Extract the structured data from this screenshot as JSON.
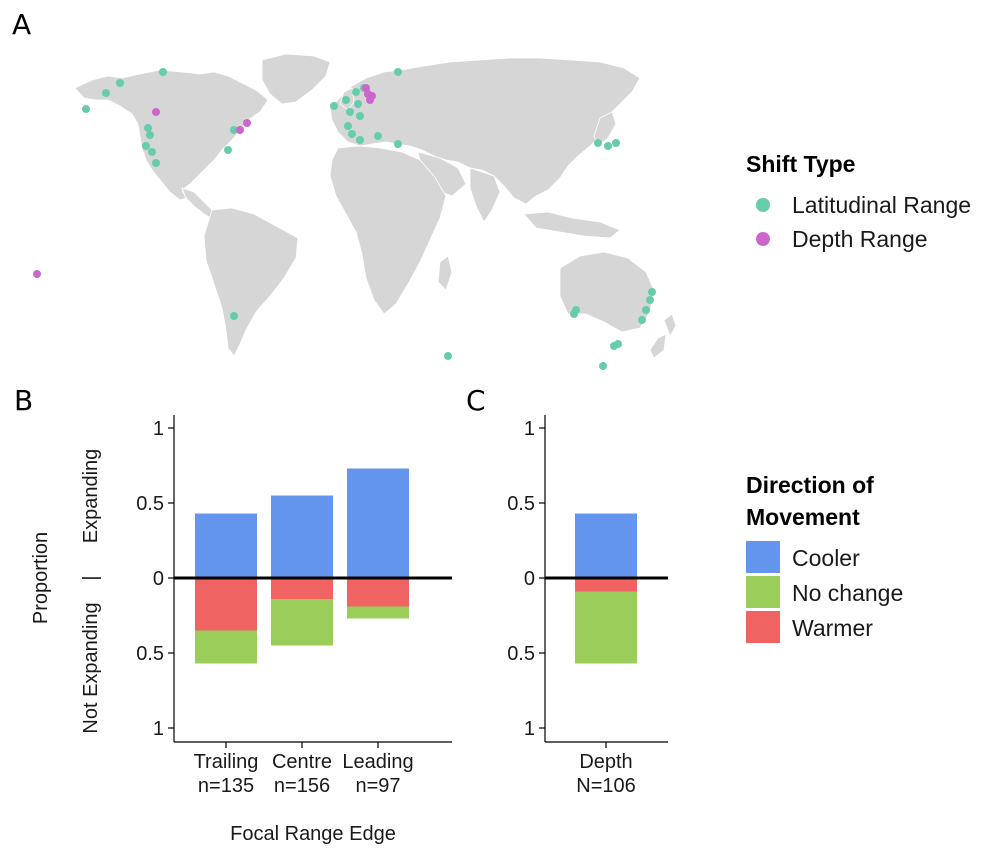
{
  "panel_labels": {
    "a": "A",
    "b": "B",
    "c": "C"
  },
  "map": {
    "legend_title": "Shift Type",
    "legend": [
      {
        "label": "Latitudinal Range",
        "color": "#66CDAA"
      },
      {
        "label": "Depth Range",
        "color": "#CC66CC"
      }
    ],
    "land_color": "#D6D6D6"
  },
  "movement_legend": {
    "title_line1": "Direction of",
    "title_line2": "Movement",
    "items": [
      {
        "label": "Cooler",
        "color": "#6495ED"
      },
      {
        "label": "No change",
        "color": "#9ACD5A"
      },
      {
        "label": "Warmer",
        "color": "#F06363"
      }
    ]
  },
  "chart_data": [
    {
      "type": "bar",
      "stacked": true,
      "diverging": true,
      "categories": [
        "Trailing",
        "Centre",
        "Leading"
      ],
      "category_counts": [
        "n=135",
        "n=156",
        "n=97"
      ],
      "series": [
        {
          "name": "Cooler",
          "direction": "up",
          "values": [
            0.43,
            0.55,
            0.73
          ]
        },
        {
          "name": "Warmer",
          "direction": "down",
          "values": [
            0.35,
            0.14,
            0.19
          ]
        },
        {
          "name": "No change",
          "direction": "down",
          "values": [
            0.22,
            0.31,
            0.08
          ]
        }
      ],
      "xlabel": "Focal Range Edge",
      "ylabel_parts": [
        "Not Expanding",
        "|",
        "Expanding"
      ],
      "ylabel_prefix": "Proportion",
      "ylim": [
        -1.1,
        1.1
      ],
      "yticks": [
        {
          "value": 1,
          "label": "1"
        },
        {
          "value": 0.5,
          "label": "0.5"
        },
        {
          "value": 0,
          "label": "0"
        },
        {
          "value": -0.5,
          "label": "0.5"
        },
        {
          "value": -1,
          "label": "1"
        }
      ]
    },
    {
      "type": "bar",
      "stacked": true,
      "diverging": true,
      "categories": [
        "Depth"
      ],
      "category_counts": [
        "N=106"
      ],
      "series": [
        {
          "name": "Cooler",
          "direction": "up",
          "values": [
            0.43
          ]
        },
        {
          "name": "Warmer",
          "direction": "down",
          "values": [
            0.09
          ]
        },
        {
          "name": "No change",
          "direction": "down",
          "values": [
            0.48
          ]
        }
      ],
      "ylim": [
        -1.1,
        1.1
      ],
      "yticks": [
        {
          "value": 1,
          "label": "1"
        },
        {
          "value": 0.5,
          "label": "0.5"
        },
        {
          "value": 0,
          "label": "0"
        },
        {
          "value": -0.5,
          "label": "0.5"
        },
        {
          "value": -1,
          "label": "1"
        }
      ]
    }
  ]
}
